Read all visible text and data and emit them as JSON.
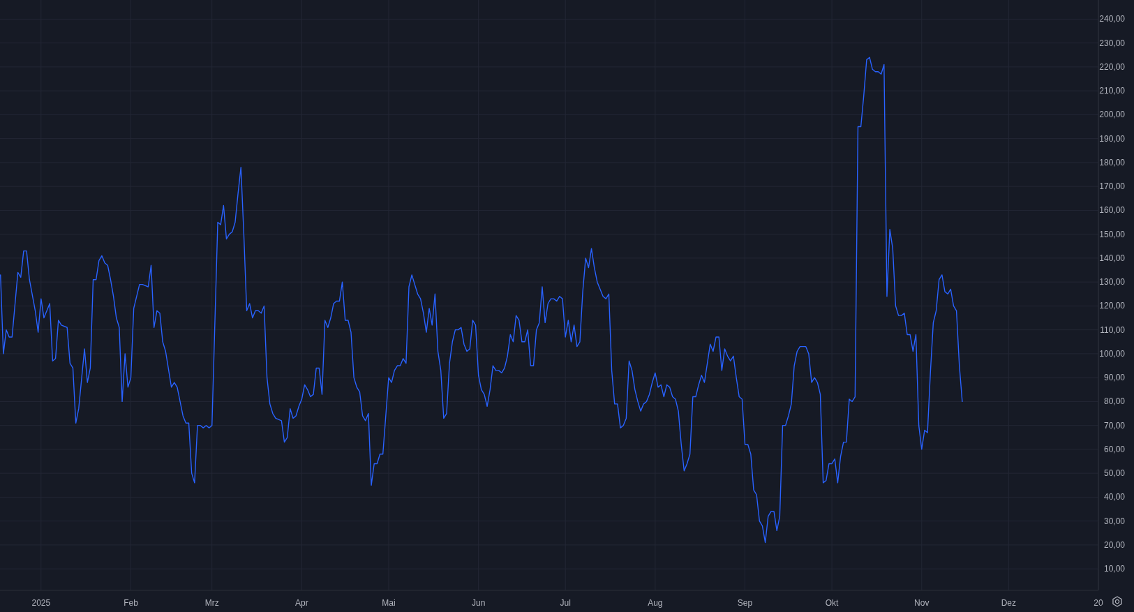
{
  "chart_data": {
    "type": "line",
    "x": [
      "2024-12-18",
      "2024-12-19",
      "2024-12-20",
      "2024-12-21",
      "2024-12-22",
      "2024-12-24",
      "2024-12-25",
      "2024-12-26",
      "2024-12-27",
      "2024-12-28",
      "2024-12-30",
      "2024-12-31",
      "2025-01-01",
      "2025-01-02",
      "2025-01-04",
      "2025-01-05",
      "2025-01-06",
      "2025-01-07",
      "2025-01-08",
      "2025-01-10",
      "2025-01-11",
      "2025-01-12",
      "2025-01-13",
      "2025-01-14",
      "2025-01-16",
      "2025-01-17",
      "2025-01-18",
      "2025-01-19",
      "2025-01-20",
      "2025-01-21",
      "2025-01-22",
      "2025-01-23",
      "2025-01-24",
      "2025-01-25",
      "2025-01-26",
      "2025-01-27",
      "2025-01-28",
      "2025-01-29",
      "2025-01-30",
      "2025-01-31",
      "2025-02-01",
      "2025-02-02",
      "2025-02-04",
      "2025-02-05",
      "2025-02-07",
      "2025-02-08",
      "2025-02-09",
      "2025-02-10",
      "2025-02-11",
      "2025-02-12",
      "2025-02-13",
      "2025-02-15",
      "2025-02-16",
      "2025-02-17",
      "2025-02-19",
      "2025-02-20",
      "2025-02-21",
      "2025-02-22",
      "2025-02-23",
      "2025-02-24",
      "2025-02-25",
      "2025-02-26",
      "2025-02-27",
      "2025-02-28",
      "2025-03-01",
      "2025-03-03",
      "2025-03-04",
      "2025-03-05",
      "2025-03-06",
      "2025-03-07",
      "2025-03-08",
      "2025-03-09",
      "2025-03-10",
      "2025-03-11",
      "2025-03-12",
      "2025-03-13",
      "2025-03-14",
      "2025-03-15",
      "2025-03-16",
      "2025-03-17",
      "2025-03-18",
      "2025-03-19",
      "2025-03-20",
      "2025-03-21",
      "2025-03-22",
      "2025-03-23",
      "2025-03-25",
      "2025-03-26",
      "2025-03-27",
      "2025-03-28",
      "2025-03-29",
      "2025-03-30",
      "2025-03-31",
      "2025-04-01",
      "2025-04-02",
      "2025-04-03",
      "2025-04-04",
      "2025-04-05",
      "2025-04-06",
      "2025-04-07",
      "2025-04-08",
      "2025-04-09",
      "2025-04-10",
      "2025-04-11",
      "2025-04-12",
      "2025-04-13",
      "2025-04-14",
      "2025-04-15",
      "2025-04-16",
      "2025-04-17",
      "2025-04-18",
      "2025-04-19",
      "2025-04-20",
      "2025-04-21",
      "2025-04-22",
      "2025-04-23",
      "2025-04-24",
      "2025-04-25",
      "2025-04-26",
      "2025-04-27",
      "2025-04-28",
      "2025-04-29",
      "2025-04-30",
      "2025-05-01",
      "2025-05-02",
      "2025-05-03",
      "2025-05-04",
      "2025-05-05",
      "2025-05-06",
      "2025-05-07",
      "2025-05-08",
      "2025-05-09",
      "2025-05-10",
      "2025-05-11",
      "2025-05-12",
      "2025-05-13",
      "2025-05-14",
      "2025-05-15",
      "2025-05-16",
      "2025-05-17",
      "2025-05-18",
      "2025-05-19",
      "2025-05-20",
      "2025-05-21",
      "2025-05-22",
      "2025-05-23",
      "2025-05-24",
      "2025-05-25",
      "2025-05-26",
      "2025-05-27",
      "2025-05-28",
      "2025-05-29",
      "2025-05-30",
      "2025-05-31",
      "2025-06-01",
      "2025-06-02",
      "2025-06-03",
      "2025-06-04",
      "2025-06-05",
      "2025-06-06",
      "2025-06-07",
      "2025-06-08",
      "2025-06-09",
      "2025-06-10",
      "2025-06-11",
      "2025-06-12",
      "2025-06-13",
      "2025-06-14",
      "2025-06-15",
      "2025-06-16",
      "2025-06-17",
      "2025-06-18",
      "2025-06-19",
      "2025-06-20",
      "2025-06-21",
      "2025-06-22",
      "2025-06-23",
      "2025-06-24",
      "2025-06-25",
      "2025-06-26",
      "2025-06-27",
      "2025-06-28",
      "2025-06-29",
      "2025-06-30",
      "2025-07-01",
      "2025-07-02",
      "2025-07-03",
      "2025-07-04",
      "2025-07-05",
      "2025-07-06",
      "2025-07-07",
      "2025-07-08",
      "2025-07-09",
      "2025-07-10",
      "2025-07-11",
      "2025-07-12",
      "2025-07-13",
      "2025-07-14",
      "2025-07-15",
      "2025-07-16",
      "2025-07-17",
      "2025-07-18",
      "2025-07-19",
      "2025-07-20",
      "2025-07-21",
      "2025-07-22",
      "2025-07-23",
      "2025-07-24",
      "2025-07-25",
      "2025-07-26",
      "2025-07-27",
      "2025-07-28",
      "2025-07-29",
      "2025-07-30",
      "2025-07-31",
      "2025-08-01",
      "2025-08-02",
      "2025-08-03",
      "2025-08-04",
      "2025-08-05",
      "2025-08-06",
      "2025-08-07",
      "2025-08-08",
      "2025-08-09",
      "2025-08-10",
      "2025-08-11",
      "2025-08-12",
      "2025-08-13",
      "2025-08-14",
      "2025-08-15",
      "2025-08-16",
      "2025-08-17",
      "2025-08-18",
      "2025-08-19",
      "2025-08-20",
      "2025-08-21",
      "2025-08-22",
      "2025-08-23",
      "2025-08-24",
      "2025-08-25",
      "2025-08-26",
      "2025-08-27",
      "2025-08-28",
      "2025-08-29",
      "2025-08-30",
      "2025-08-31",
      "2025-09-01",
      "2025-09-02",
      "2025-09-03",
      "2025-09-04",
      "2025-09-05",
      "2025-09-06",
      "2025-09-07",
      "2025-09-08",
      "2025-09-09",
      "2025-09-10",
      "2025-09-11",
      "2025-09-12",
      "2025-09-13",
      "2025-09-14",
      "2025-09-15",
      "2025-09-16",
      "2025-09-17",
      "2025-09-18",
      "2025-09-19",
      "2025-09-20",
      "2025-09-21",
      "2025-09-22",
      "2025-09-23",
      "2025-09-24",
      "2025-09-25",
      "2025-09-26",
      "2025-09-27",
      "2025-09-28",
      "2025-09-29",
      "2025-09-30",
      "2025-10-01",
      "2025-10-02",
      "2025-10-03",
      "2025-10-04",
      "2025-10-05",
      "2025-10-06",
      "2025-10-07",
      "2025-10-08",
      "2025-10-09",
      "2025-10-10",
      "2025-10-11",
      "2025-10-12",
      "2025-10-13",
      "2025-10-14",
      "2025-10-15",
      "2025-10-16",
      "2025-10-17",
      "2025-10-18",
      "2025-10-19",
      "2025-10-20",
      "2025-10-21",
      "2025-10-22",
      "2025-10-23",
      "2025-10-24",
      "2025-10-25",
      "2025-10-26",
      "2025-10-27",
      "2025-10-28",
      "2025-10-29",
      "2025-10-30",
      "2025-10-31",
      "2025-11-01",
      "2025-11-02",
      "2025-11-03",
      "2025-11-04",
      "2025-11-05",
      "2025-11-06",
      "2025-11-07",
      "2025-11-08",
      "2025-11-09",
      "2025-11-10",
      "2025-11-11",
      "2025-11-12",
      "2025-11-13",
      "2025-11-14",
      "2025-11-15"
    ],
    "series": [
      {
        "color": "#2962ff",
        "values": [
          133,
          100,
          110,
          107,
          107,
          134,
          132,
          143,
          143,
          131,
          118,
          109,
          123,
          115,
          121,
          97,
          98,
          114,
          112,
          111,
          96,
          94,
          71,
          77,
          102,
          88,
          94,
          131,
          131,
          139,
          141,
          138,
          137,
          131,
          124,
          115,
          111,
          80,
          100,
          86,
          90,
          119,
          129,
          129,
          128,
          137,
          111,
          118,
          117,
          105,
          101,
          86,
          88,
          86,
          74,
          71,
          71,
          50,
          46,
          70,
          70,
          69,
          70,
          69,
          70,
          155,
          154,
          162,
          148,
          150,
          151,
          155,
          167,
          178,
          150,
          118,
          121,
          115,
          118,
          118,
          117,
          120,
          90,
          79,
          75,
          73,
          72,
          63,
          65,
          77,
          73,
          74,
          78,
          81,
          87,
          85,
          82,
          83,
          94,
          94,
          83,
          114,
          111,
          115,
          121,
          122,
          122,
          130,
          114,
          114,
          109,
          90,
          86,
          84,
          74,
          72,
          75,
          45,
          54,
          54,
          58,
          58,
          74,
          90,
          88,
          93,
          95,
          95,
          98,
          96,
          128,
          133,
          129,
          125,
          123,
          117,
          109,
          119,
          112,
          125,
          101,
          93,
          73,
          75,
          96,
          105,
          110,
          110,
          111,
          104,
          101,
          102,
          114,
          112,
          91,
          85,
          83,
          78,
          85,
          95,
          93,
          93,
          92,
          94,
          99,
          108,
          105,
          116,
          114,
          105,
          105,
          110,
          95,
          95,
          110,
          113,
          128,
          113,
          121,
          123,
          123,
          122,
          124,
          123,
          107,
          114,
          105,
          112,
          103,
          105,
          126,
          140,
          136,
          144,
          136,
          130,
          127,
          124,
          123,
          125,
          93,
          79,
          79,
          69,
          70,
          73,
          97,
          93,
          85,
          80,
          76,
          79,
          80,
          83,
          88,
          92,
          86,
          87,
          82,
          87,
          86,
          82,
          81,
          76,
          62,
          51,
          54,
          58,
          82,
          82,
          87,
          91,
          88,
          96,
          104,
          101,
          107,
          107,
          93,
          102,
          99,
          97,
          99,
          90,
          82,
          81,
          62,
          62,
          58,
          43,
          41,
          30,
          28,
          21,
          32,
          34,
          34,
          26,
          32,
          70,
          70,
          74,
          79,
          95,
          101,
          103,
          103,
          103,
          100,
          88,
          90,
          88,
          83,
          46,
          47,
          54,
          54,
          56,
          46,
          57,
          63,
          63,
          81,
          80,
          82,
          195,
          195,
          208,
          223,
          224,
          219,
          218,
          218,
          217,
          221,
          124,
          152,
          144,
          120,
          116,
          116,
          117,
          108,
          108,
          101,
          108,
          70,
          60,
          68,
          67,
          92,
          113,
          118,
          131,
          133,
          126,
          125,
          127,
          120,
          118,
          95,
          80
        ]
      }
    ],
    "xlim": [
      "2024-12-17T20:00",
      "2026-01-01"
    ],
    "xticks": [
      {
        "value": "2025-01-01",
        "label": "2025"
      },
      {
        "value": "2025-02-01",
        "label": "Feb"
      },
      {
        "value": "2025-03-01",
        "label": "Mrz"
      },
      {
        "value": "2025-04-01",
        "label": "Apr"
      },
      {
        "value": "2025-05-01",
        "label": "Mai"
      },
      {
        "value": "2025-06-01",
        "label": "Jun"
      },
      {
        "value": "2025-07-01",
        "label": "Jul"
      },
      {
        "value": "2025-08-01",
        "label": "Aug"
      },
      {
        "value": "2025-09-01",
        "label": "Sep"
      },
      {
        "value": "2025-10-01",
        "label": "Okt"
      },
      {
        "value": "2025-11-01",
        "label": "Nov"
      },
      {
        "value": "2025-12-01",
        "label": "Dez"
      },
      {
        "value": "2026-01-01",
        "label": "20"
      }
    ],
    "ylim": [
      1,
      248
    ],
    "yticks": [
      {
        "value": 10,
        "label": "10,00"
      },
      {
        "value": 20,
        "label": "20,00"
      },
      {
        "value": 30,
        "label": "30,00"
      },
      {
        "value": 40,
        "label": "40,00"
      },
      {
        "value": 50,
        "label": "50,00"
      },
      {
        "value": 60,
        "label": "60,00"
      },
      {
        "value": 70,
        "label": "70,00"
      },
      {
        "value": 80,
        "label": "80,00"
      },
      {
        "value": 90,
        "label": "90,00"
      },
      {
        "value": 100,
        "label": "100,00"
      },
      {
        "value": 110,
        "label": "110,00"
      },
      {
        "value": 120,
        "label": "120,00"
      },
      {
        "value": 130,
        "label": "130,00"
      },
      {
        "value": 140,
        "label": "140,00"
      },
      {
        "value": 150,
        "label": "150,00"
      },
      {
        "value": 160,
        "label": "160,00"
      },
      {
        "value": 170,
        "label": "170,00"
      },
      {
        "value": 180,
        "label": "180,00"
      },
      {
        "value": 190,
        "label": "190,00"
      },
      {
        "value": 200,
        "label": "200,00"
      },
      {
        "value": 210,
        "label": "210,00"
      },
      {
        "value": 220,
        "label": "220,00"
      },
      {
        "value": 230,
        "label": "230,00"
      },
      {
        "value": 240,
        "label": "240,00"
      }
    ],
    "grid": true
  }
}
